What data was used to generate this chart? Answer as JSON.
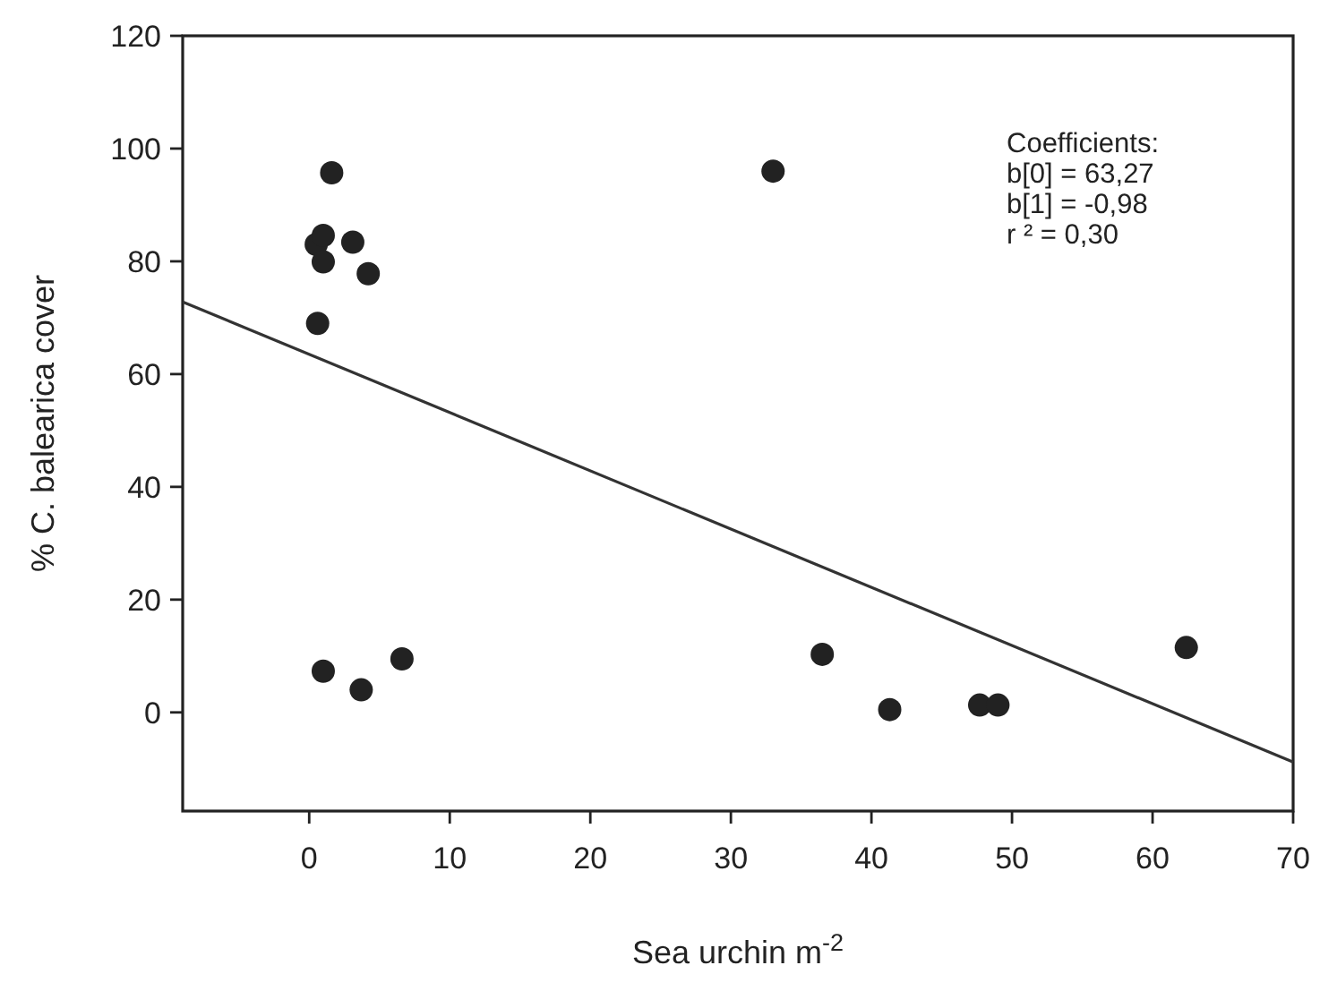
{
  "chart_data": {
    "type": "scatter",
    "xlabel": "Sea urchin m$^{-2}$",
    "ylabel": "% C. balearica cover",
    "xlim": [
      -9,
      70
    ],
    "ylim": [
      -17.5,
      120
    ],
    "xticks": [
      0,
      10,
      20,
      30,
      40,
      50,
      60,
      70
    ],
    "yticks": [
      0,
      20,
      40,
      60,
      80,
      100,
      120
    ],
    "grid": false,
    "marker": "circle",
    "series": [
      {
        "color": "#222222",
        "x": [
          1.6,
          0.5,
          1.0,
          1.0,
          3.1,
          4.2,
          0.6,
          1.0,
          3.7,
          6.6,
          33.0,
          36.5,
          41.3,
          47.7,
          49.0,
          62.4
        ],
        "values": [
          95.7,
          83,
          84.6,
          79.9,
          83.4,
          77.8,
          69,
          7.3,
          4.0,
          9.5,
          96,
          10.3,
          0.5,
          1.3,
          1.3,
          11.5
        ]
      },
      {
        "type": "line",
        "color": "#333333",
        "marker": "none",
        "line_style": "solid",
        "x": [
          -9,
          70
        ],
        "values": [
          72.8,
          -8.8
        ]
      }
    ],
    "annotations": [
      "Coefficients:",
      "b[0] = 63,27",
      "b[1] = -0,98",
      "r ² = 0,30"
    ]
  }
}
